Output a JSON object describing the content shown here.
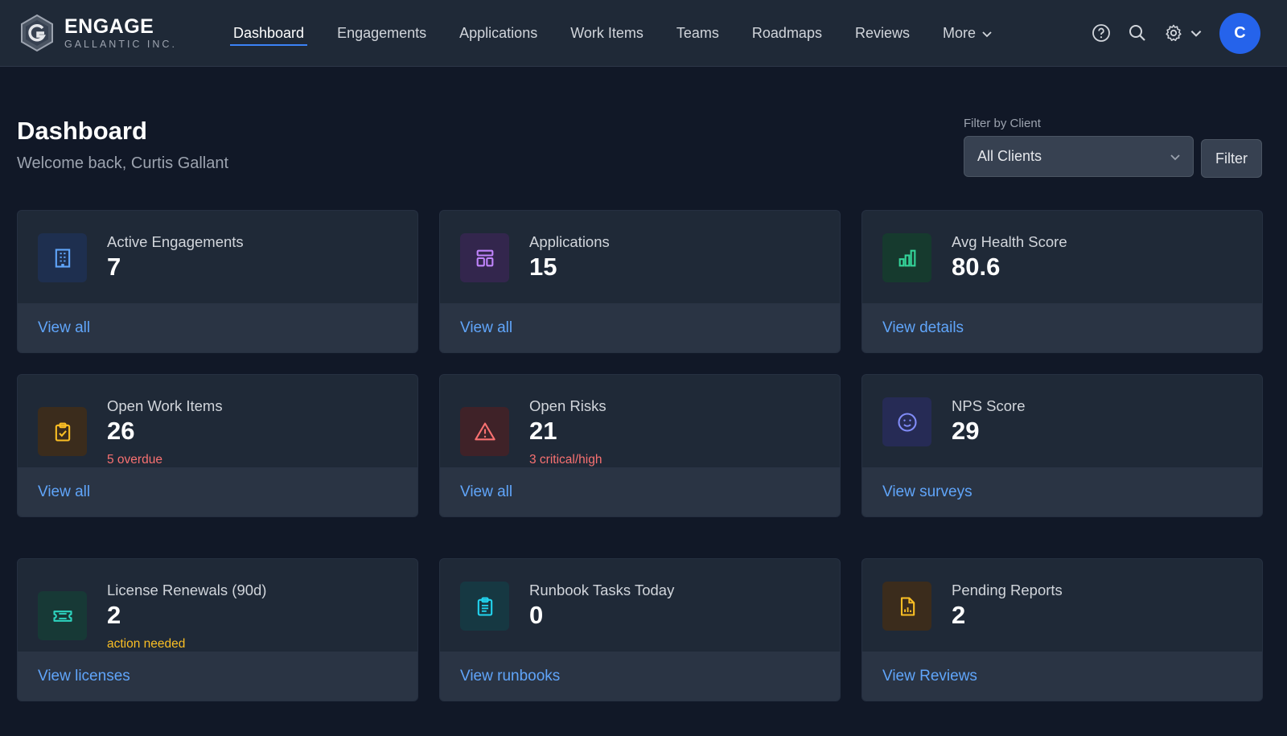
{
  "brand": {
    "name": "ENGAGE",
    "subtitle": "GALLANTIC INC."
  },
  "nav": {
    "items": [
      {
        "label": "Dashboard",
        "active": true
      },
      {
        "label": "Engagements"
      },
      {
        "label": "Applications"
      },
      {
        "label": "Work Items"
      },
      {
        "label": "Teams"
      },
      {
        "label": "Roadmaps"
      },
      {
        "label": "Reviews"
      },
      {
        "label": "More"
      }
    ]
  },
  "user": {
    "avatar_initial": "C"
  },
  "page": {
    "title": "Dashboard",
    "welcome": "Welcome back, Curtis Gallant"
  },
  "filter": {
    "label": "Filter by Client",
    "selected": "All Clients",
    "button": "Filter"
  },
  "colors": {
    "accent": "#3b82f6",
    "link": "#60a5fa",
    "card_bg": "#1f2937",
    "page_bg": "#111827"
  },
  "cards": [
    {
      "label": "Active Engagements",
      "value": "7",
      "note": "",
      "link": "View all",
      "icon": "building-icon"
    },
    {
      "label": "Applications",
      "value": "15",
      "note": "",
      "link": "View all",
      "icon": "layout-icon"
    },
    {
      "label": "Avg Health Score",
      "value": "80.6",
      "note": "",
      "link": "View details",
      "icon": "bar-chart-icon"
    },
    {
      "label": "Open Work Items",
      "value": "26",
      "note": "5 overdue",
      "link": "View all",
      "icon": "clipboard-check-icon"
    },
    {
      "label": "Open Risks",
      "value": "21",
      "note": "3 critical/high",
      "link": "View all",
      "icon": "warning-icon"
    },
    {
      "label": "NPS Score",
      "value": "29",
      "note": "",
      "link": "View surveys",
      "icon": "smile-icon"
    },
    {
      "label": "License Renewals (90d)",
      "value": "2",
      "note": "action needed",
      "link": "View licenses",
      "icon": "ticket-icon"
    },
    {
      "label": "Runbook Tasks Today",
      "value": "0",
      "note": "",
      "link": "View runbooks",
      "icon": "clipboard-list-icon"
    },
    {
      "label": "Pending Reports",
      "value": "2",
      "note": "",
      "link": "View Reviews",
      "icon": "report-icon"
    }
  ]
}
